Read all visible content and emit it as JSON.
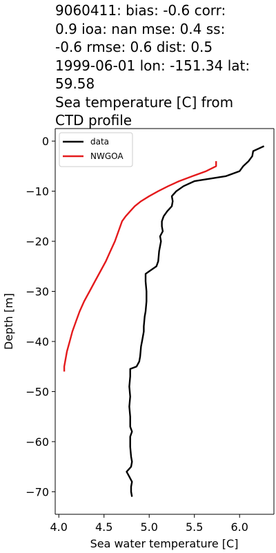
{
  "title_lines": [
    "9060411: bias: -0.6  corr:",
    "0.9  ioa: nan  mse: 0.4  ss:",
    "-0.6  rmse: 0.6  dist: 0.5",
    "1999-06-01 lon: -151.34 lat:",
    "59.58",
    "Sea temperature [C] from",
    "CTD profile"
  ],
  "chart_data": {
    "type": "line",
    "title": "9060411: bias: -0.6  corr: 0.9  ioa: nan  mse: 0.4  ss: -0.6  rmse: 0.6  dist: 0.5 1999-06-01 lon: -151.34 lat: 59.58 Sea temperature [C] from CTD profile",
    "xlabel": "Sea water temperature [C]",
    "ylabel": "Depth [m]",
    "xlim": [
      3.96,
      6.38
    ],
    "ylim": [
      -74.5,
      2.5
    ],
    "xticks": [
      4.0,
      4.5,
      5.0,
      5.5,
      6.0
    ],
    "xtick_labels": [
      "4.0",
      "4.5",
      "5.0",
      "5.5",
      "6.0"
    ],
    "yticks": [
      0,
      -10,
      -20,
      -30,
      -40,
      -50,
      -60,
      -70
    ],
    "ytick_labels": [
      "0",
      "−10",
      "−20",
      "−30",
      "−40",
      "−50",
      "−60",
      "−70"
    ],
    "grid": false,
    "legend_position": "top-left",
    "series": [
      {
        "name": "data",
        "color": "#000000",
        "points": [
          [
            6.27,
            -1
          ],
          [
            6.15,
            -2
          ],
          [
            6.14,
            -3
          ],
          [
            6.1,
            -4
          ],
          [
            6.04,
            -5
          ],
          [
            6.0,
            -6
          ],
          [
            5.85,
            -7
          ],
          [
            5.5,
            -8
          ],
          [
            5.38,
            -9
          ],
          [
            5.3,
            -10
          ],
          [
            5.25,
            -11
          ],
          [
            5.26,
            -12
          ],
          [
            5.25,
            -13
          ],
          [
            5.2,
            -14
          ],
          [
            5.16,
            -15
          ],
          [
            5.14,
            -16
          ],
          [
            5.14,
            -17
          ],
          [
            5.15,
            -18
          ],
          [
            5.12,
            -19
          ],
          [
            5.13,
            -20
          ],
          [
            5.11,
            -22
          ],
          [
            5.1,
            -24
          ],
          [
            5.08,
            -25
          ],
          [
            5.0,
            -26
          ],
          [
            4.96,
            -26.5
          ],
          [
            4.96,
            -28
          ],
          [
            4.97,
            -30
          ],
          [
            4.97,
            -32
          ],
          [
            4.96,
            -34
          ],
          [
            4.95,
            -35
          ],
          [
            4.94,
            -37
          ],
          [
            4.94,
            -38
          ],
          [
            4.92,
            -40
          ],
          [
            4.91,
            -41
          ],
          [
            4.9,
            -43
          ],
          [
            4.89,
            -44
          ],
          [
            4.86,
            -45
          ],
          [
            4.79,
            -45.5
          ],
          [
            4.79,
            -47
          ],
          [
            4.78,
            -49
          ],
          [
            4.79,
            -51
          ],
          [
            4.78,
            -53
          ],
          [
            4.79,
            -55
          ],
          [
            4.79,
            -57
          ],
          [
            4.81,
            -58
          ],
          [
            4.79,
            -59
          ],
          [
            4.79,
            -61
          ],
          [
            4.8,
            -63
          ],
          [
            4.81,
            -64
          ],
          [
            4.8,
            -65
          ],
          [
            4.75,
            -66
          ],
          [
            4.78,
            -67
          ],
          [
            4.81,
            -68
          ],
          [
            4.8,
            -69
          ],
          [
            4.8,
            -70
          ],
          [
            4.81,
            -71
          ]
        ]
      },
      {
        "name": "NWGOA",
        "color": "#e41a1c",
        "points": [
          [
            5.74,
            -4
          ],
          [
            5.74,
            -5
          ],
          [
            5.63,
            -6
          ],
          [
            5.48,
            -7
          ],
          [
            5.33,
            -8
          ],
          [
            5.21,
            -9
          ],
          [
            5.1,
            -10
          ],
          [
            5.0,
            -11
          ],
          [
            4.91,
            -12
          ],
          [
            4.84,
            -13
          ],
          [
            4.79,
            -14
          ],
          [
            4.74,
            -15
          ],
          [
            4.7,
            -16
          ],
          [
            4.66,
            -18
          ],
          [
            4.62,
            -20
          ],
          [
            4.57,
            -22
          ],
          [
            4.52,
            -24
          ],
          [
            4.46,
            -26
          ],
          [
            4.4,
            -28
          ],
          [
            4.34,
            -30
          ],
          [
            4.28,
            -32
          ],
          [
            4.23,
            -34
          ],
          [
            4.19,
            -36
          ],
          [
            4.15,
            -38
          ],
          [
            4.12,
            -40
          ],
          [
            4.09,
            -42
          ],
          [
            4.07,
            -44
          ],
          [
            4.06,
            -45
          ],
          [
            4.06,
            -46
          ]
        ]
      }
    ]
  }
}
